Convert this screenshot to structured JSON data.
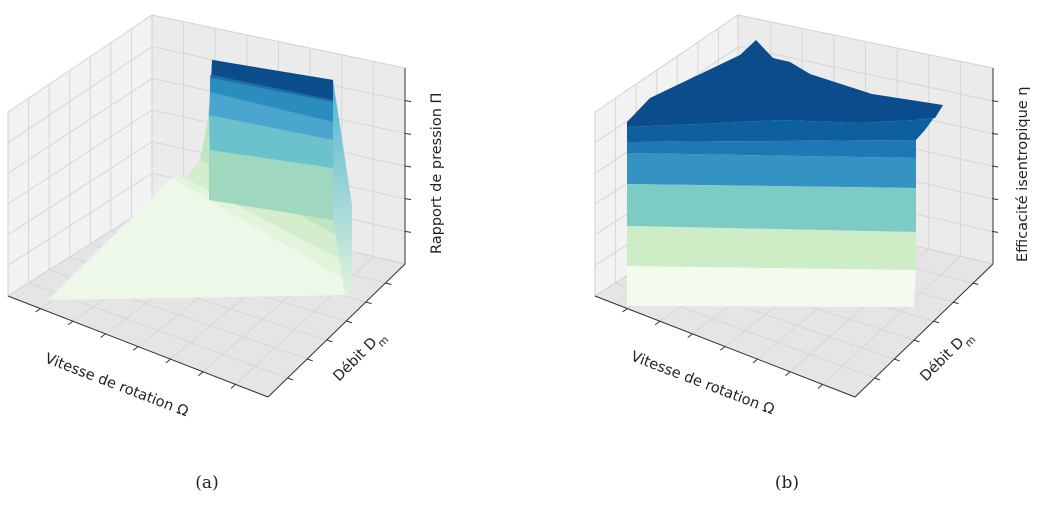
{
  "figures": [
    {
      "caption": "(a)",
      "chart_data": {
        "type": "surface",
        "projection": "3d",
        "x_label": "Vitesse de rotation Ω",
        "y_label": "Débit D",
        "y_label_subscript": "m",
        "z_label": "Rapport de pression Π",
        "tick_labels_shown": false,
        "grid": true,
        "colormap": [
          "#f7fcf0",
          "#e0f3db",
          "#ccebc5",
          "#a8ddb5",
          "#7bccc4",
          "#4eb3d3",
          "#2b8cbe",
          "#0868ac",
          "#084081"
        ],
        "shape": "low plateau at small rotation speed, rising steeply toward the highest rotation speed, with pressure ratio decreasing as flow rate increases"
      }
    },
    {
      "caption": "(b)",
      "chart_data": {
        "type": "surface",
        "projection": "3d",
        "x_label": "Vitesse de rotation Ω",
        "y_label": "Débit D",
        "y_label_subscript": "m",
        "z_label": "Efficacité isentropique η",
        "tick_labels_shown": false,
        "grid": true,
        "colormap": [
          "#f7fcf0",
          "#e0f3db",
          "#ccebc5",
          "#a8ddb5",
          "#7bccc4",
          "#4eb3d3",
          "#2b8cbe",
          "#0868ac",
          "#084081"
        ],
        "shape": "high efficiency across most of the domain with a peak near the middle of the flow range"
      }
    }
  ]
}
